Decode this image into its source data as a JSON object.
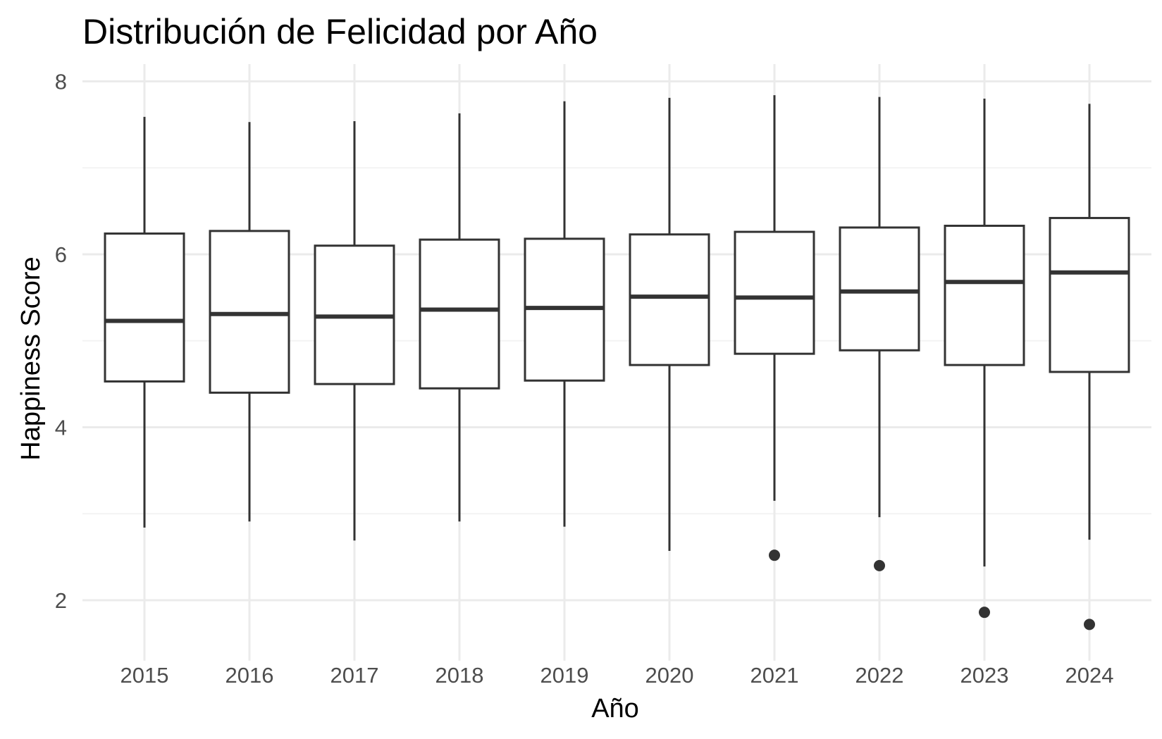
{
  "chart_data": {
    "type": "boxplot",
    "title": "Distribución de Felicidad por Año",
    "xlabel": "Año",
    "ylabel": "Happiness Score",
    "ylim": [
      1.3,
      8.2
    ],
    "yticks": [
      2,
      4,
      6,
      8
    ],
    "grid": true,
    "categories": [
      "2015",
      "2016",
      "2017",
      "2018",
      "2019",
      "2020",
      "2021",
      "2022",
      "2023",
      "2024"
    ],
    "boxes": [
      {
        "category": "2015",
        "whisker_low": 2.84,
        "q1": 4.53,
        "median": 5.23,
        "q3": 6.24,
        "whisker_high": 7.59,
        "outliers": []
      },
      {
        "category": "2016",
        "whisker_low": 2.91,
        "q1": 4.4,
        "median": 5.31,
        "q3": 6.27,
        "whisker_high": 7.53,
        "outliers": []
      },
      {
        "category": "2017",
        "whisker_low": 2.69,
        "q1": 4.5,
        "median": 5.28,
        "q3": 6.1,
        "whisker_high": 7.54,
        "outliers": []
      },
      {
        "category": "2018",
        "whisker_low": 2.91,
        "q1": 4.45,
        "median": 5.36,
        "q3": 6.17,
        "whisker_high": 7.63,
        "outliers": []
      },
      {
        "category": "2019",
        "whisker_low": 2.85,
        "q1": 4.54,
        "median": 5.38,
        "q3": 6.18,
        "whisker_high": 7.77,
        "outliers": []
      },
      {
        "category": "2020",
        "whisker_low": 2.57,
        "q1": 4.72,
        "median": 5.51,
        "q3": 6.23,
        "whisker_high": 7.81,
        "outliers": []
      },
      {
        "category": "2021",
        "whisker_low": 3.15,
        "q1": 4.85,
        "median": 5.5,
        "q3": 6.26,
        "whisker_high": 7.84,
        "outliers": [
          2.52
        ]
      },
      {
        "category": "2022",
        "whisker_low": 2.96,
        "q1": 4.89,
        "median": 5.57,
        "q3": 6.31,
        "whisker_high": 7.82,
        "outliers": [
          2.4
        ]
      },
      {
        "category": "2023",
        "whisker_low": 2.39,
        "q1": 4.72,
        "median": 5.68,
        "q3": 6.33,
        "whisker_high": 7.8,
        "outliers": [
          1.86
        ]
      },
      {
        "category": "2024",
        "whisker_low": 2.7,
        "q1": 4.64,
        "median": 5.79,
        "q3": 6.42,
        "whisker_high": 7.74,
        "outliers": [
          1.72
        ]
      }
    ],
    "colors": {
      "box_stroke": "#333333",
      "box_fill": "#ffffff",
      "grid_major": "#ebebeb",
      "grid_minor": "#f3f3f3",
      "tick_text": "#4d4d4d",
      "text": "#000000"
    }
  }
}
